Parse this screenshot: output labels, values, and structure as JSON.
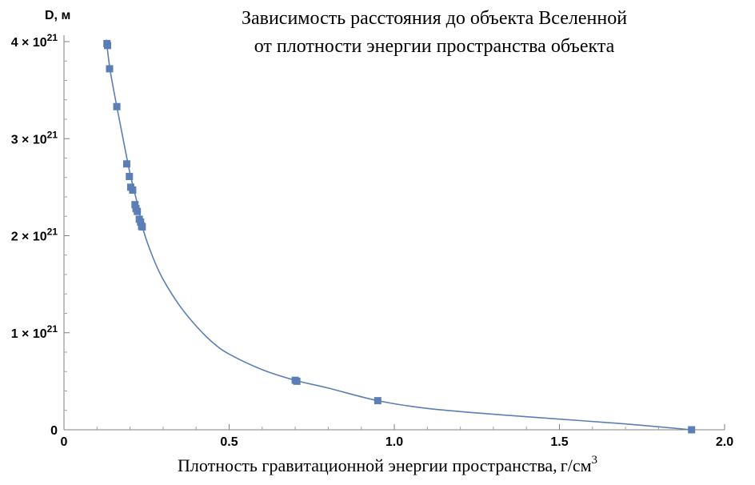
{
  "chart_data": {
    "type": "scatter",
    "title_lines": [
      "Зависимость расстояния до объекта Вселенной",
      "от плотности энергии пространства объекта"
    ],
    "xlabel": "Плотность гравитационной энергии пространства,",
    "xlabel_unit": "г/см",
    "xlabel_unit_exp": "3",
    "ylabel": "D, м",
    "xlim": [
      0,
      2.0
    ],
    "ylim": [
      0,
      4e+21
    ],
    "x_ticks": [
      {
        "value": 0,
        "label": "0"
      },
      {
        "value": 0.5,
        "label": "0.5"
      },
      {
        "value": 1.0,
        "label": "1.0"
      },
      {
        "value": 1.5,
        "label": "1.5"
      },
      {
        "value": 2.0,
        "label": "2.0"
      }
    ],
    "y_ticks": [
      {
        "value": 0,
        "label": "0",
        "mantissa": "",
        "exponent": ""
      },
      {
        "value": 1e+21,
        "label": "",
        "mantissa": "1 × 10",
        "exponent": "21"
      },
      {
        "value": 2e+21,
        "label": "",
        "mantissa": "2 × 10",
        "exponent": "21"
      },
      {
        "value": 3e+21,
        "label": "",
        "mantissa": "3 × 10",
        "exponent": "21"
      },
      {
        "value": 4e+21,
        "label": "",
        "mantissa": "4 × 10",
        "exponent": "21"
      }
    ],
    "series": [
      {
        "marker_color": "#5b7fb5",
        "x": [
          0.13,
          0.132,
          0.138,
          0.16,
          0.19,
          0.198,
          0.202,
          0.208,
          0.215,
          0.218,
          0.222,
          0.228,
          0.232,
          0.235,
          0.237,
          0.7,
          0.705,
          0.95,
          1.9
        ],
        "y": [
          3.98e+21,
          3.96e+21,
          3.72e+21,
          3.33e+21,
          2.74e+21,
          2.61e+21,
          2.5e+21,
          2.47e+21,
          2.32e+21,
          2.28e+21,
          2.25e+21,
          2.17e+21,
          2.14e+21,
          2.1e+21,
          2.09e+21,
          5.1e+20,
          5e+20,
          3e+20,
          0.0
        ]
      }
    ],
    "fit_curve": {
      "color": "#5b7fb5",
      "x": [
        0.128,
        0.14,
        0.16,
        0.18,
        0.2,
        0.22,
        0.24,
        0.27,
        0.3,
        0.35,
        0.4,
        0.45,
        0.5,
        0.6,
        0.7,
        0.8,
        0.95,
        1.1,
        1.3,
        1.5,
        1.7,
        1.9
      ],
      "y": [
        4.02e+21,
        3.7e+21,
        3.33e+21,
        2.98e+21,
        2.64e+21,
        2.36e+21,
        2.06e+21,
        1.77e+21,
        1.55e+21,
        1.28e+21,
        1.07e+21,
        9e+20,
        7.8e+20,
        6.2e+20,
        5.1e+20,
        4.3e+20,
        3e+20,
        2.2e+20,
        1.6e+20,
        1.1e+20,
        6e+19,
        0.0
      ]
    },
    "grid": false,
    "legend": "none"
  }
}
